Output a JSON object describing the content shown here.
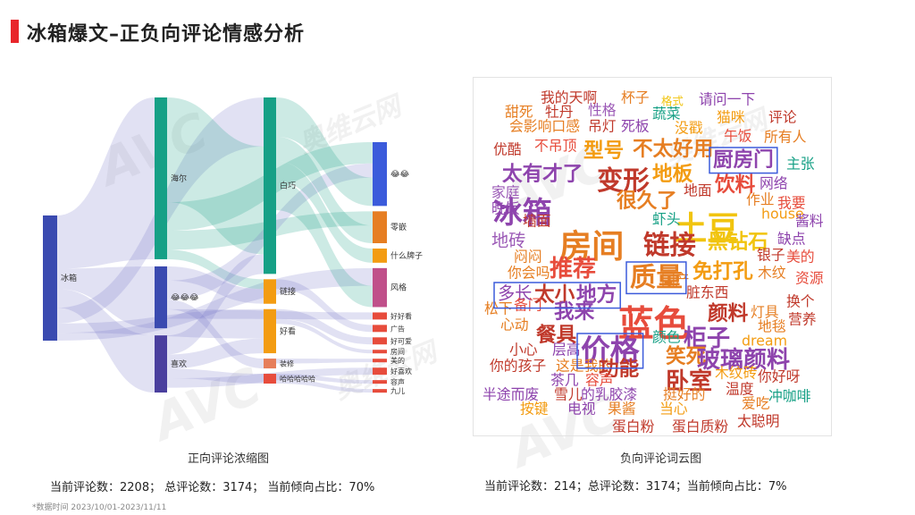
{
  "header": {
    "title": "冰箱爆文–正负向评论情感分析"
  },
  "watermark": {
    "brand": "AVC",
    "name": "奥维云网",
    "en": "ALL VIEW CLOUD"
  },
  "left_panel": {
    "caption": "正向评论浓缩图",
    "stats": "当前评论数：2208； 总评论数：3174； 当前倾向占比：70%"
  },
  "right_panel": {
    "caption": "负向评论词云图",
    "stats": "当前评论数：214；总评论数：3174；当前倾向占比：7%"
  },
  "footnote": "*数据时间 2023/10/01-2023/11/11",
  "chart_data": [
    {
      "type": "sankey",
      "title": "正向评论浓缩图",
      "nodes": [
        {
          "id": "冰箱",
          "level": 0,
          "color": "#3a4ab0"
        },
        {
          "id": "海尔",
          "level": 1,
          "color": "#16a086"
        },
        {
          "id": "😂😂😂",
          "level": 1,
          "color": "#3a4ab0"
        },
        {
          "id": "喜欢",
          "level": 1,
          "color": "#4a3f9e"
        },
        {
          "id": "白巧",
          "level": 2,
          "color": "#16a086"
        },
        {
          "id": "链接",
          "level": 2,
          "color": "#f39c12"
        },
        {
          "id": "好看",
          "level": 2,
          "color": "#f39c12"
        },
        {
          "id": "装修",
          "level": 2,
          "color": "#e67e5a"
        },
        {
          "id": "哈哈哈哈哈",
          "level": 2,
          "color": "#e74c3c"
        },
        {
          "id": "😂😂",
          "level": 3,
          "color": "#3b5bdb"
        },
        {
          "id": "零嵌",
          "level": 3,
          "color": "#e67e22"
        },
        {
          "id": "什么牌子",
          "level": 3,
          "color": "#f39c12"
        },
        {
          "id": "风格",
          "level": 3,
          "color": "#c0508a"
        },
        {
          "id": "好好看",
          "level": 3,
          "color": "#e74c3c"
        },
        {
          "id": "广告",
          "level": 3,
          "color": "#e74c3c"
        },
        {
          "id": "好可爱",
          "level": 3,
          "color": "#e74c3c"
        },
        {
          "id": "房间",
          "level": 3,
          "color": "#e74c3c"
        },
        {
          "id": "美的",
          "level": 3,
          "color": "#e74c3c"
        },
        {
          "id": "好喜欢",
          "level": 3,
          "color": "#e74c3c"
        },
        {
          "id": "容声",
          "level": 3,
          "color": "#e74c3c"
        },
        {
          "id": "九儿",
          "level": 3,
          "color": "#e74c3c"
        }
      ],
      "links": [
        {
          "source": "冰箱",
          "target": "海尔",
          "value": 34
        },
        {
          "source": "冰箱",
          "target": "😂😂😂",
          "value": 13
        },
        {
          "source": "冰箱",
          "target": "喜欢",
          "value": 12
        },
        {
          "source": "冰箱",
          "target": "白巧",
          "value": 10
        },
        {
          "source": "冰箱",
          "target": "好看",
          "value": 6
        },
        {
          "source": "冰箱",
          "target": "风格",
          "value": 5
        },
        {
          "source": "海尔",
          "target": "白巧",
          "value": 22
        },
        {
          "source": "海尔",
          "target": "😂😂",
          "value": 6
        },
        {
          "source": "海尔",
          "target": "零嵌",
          "value": 4
        },
        {
          "source": "海尔",
          "target": "链接",
          "value": 2
        },
        {
          "source": "😂😂😂",
          "target": "链接",
          "value": 3
        },
        {
          "source": "😂😂😂",
          "target": "😂😂",
          "value": 4
        },
        {
          "source": "😂😂😂",
          "target": "装修",
          "value": 2
        },
        {
          "source": "😂😂😂",
          "target": "好好看",
          "value": 2
        },
        {
          "source": "喜欢",
          "target": "白巧",
          "value": 4
        },
        {
          "source": "喜欢",
          "target": "好看",
          "value": 3
        },
        {
          "source": "喜欢",
          "target": "哈哈哈哈哈",
          "value": 2
        },
        {
          "source": "喜欢",
          "target": "好喜欢",
          "value": 2
        },
        {
          "source": "白巧",
          "target": "😂😂",
          "value": 8
        },
        {
          "source": "白巧",
          "target": "零嵌",
          "value": 5
        },
        {
          "source": "白巧",
          "target": "什么牌子",
          "value": 4
        },
        {
          "source": "白巧",
          "target": "风格",
          "value": 6
        },
        {
          "source": "链接",
          "target": "广告",
          "value": 2
        },
        {
          "source": "好看",
          "target": "好可爱",
          "value": 2
        },
        {
          "source": "好看",
          "target": "房间",
          "value": 1
        },
        {
          "source": "装修",
          "target": "美的",
          "value": 1
        },
        {
          "source": "哈哈哈哈哈",
          "target": "容声",
          "value": 1
        },
        {
          "source": "哈哈哈哈哈",
          "target": "九儿",
          "value": 1
        }
      ]
    },
    {
      "type": "wordcloud",
      "title": "负向评论词云图",
      "highlighted": [
        "厨房门",
        "质量",
        "多长 太小 地方",
        "价格"
      ],
      "words": [
        {
          "text": "我的天啊",
          "weight": 2,
          "color": "#c0392b"
        },
        {
          "text": "杯子",
          "weight": 2,
          "color": "#e67e22"
        },
        {
          "text": "格式",
          "weight": 1,
          "color": "#f1c40f"
        },
        {
          "text": "请问一下",
          "weight": 2,
          "color": "#8e44ad"
        },
        {
          "text": "甜死",
          "weight": 2,
          "color": "#e67e22"
        },
        {
          "text": "牡丹",
          "weight": 2,
          "color": "#c0392b"
        },
        {
          "text": "性格",
          "weight": 2,
          "color": "#9b59b6"
        },
        {
          "text": "蔬菜",
          "weight": 2,
          "color": "#16a085"
        },
        {
          "text": "猫咪",
          "weight": 2,
          "color": "#f39c12"
        },
        {
          "text": "评论",
          "weight": 2,
          "color": "#c0392b"
        },
        {
          "text": "会影响口感",
          "weight": 2,
          "color": "#e67e22"
        },
        {
          "text": "吊灯",
          "weight": 2,
          "color": "#c0392b"
        },
        {
          "text": "死板",
          "weight": 2,
          "color": "#8e44ad"
        },
        {
          "text": "没戳",
          "weight": 2,
          "color": "#f39c12"
        },
        {
          "text": "午饭",
          "weight": 2,
          "color": "#e74c3c"
        },
        {
          "text": "所有人",
          "weight": 2,
          "color": "#e67e22"
        },
        {
          "text": "优酷",
          "weight": 2,
          "color": "#c0392b"
        },
        {
          "text": "不吊顶",
          "weight": 2,
          "color": "#e74c3c"
        },
        {
          "text": "型号",
          "weight": 4,
          "color": "#f39c12"
        },
        {
          "text": "不太好用",
          "weight": 4,
          "color": "#e67e22"
        },
        {
          "text": "厨房门",
          "weight": 4,
          "color": "#8e44ad"
        },
        {
          "text": "主张",
          "weight": 2,
          "color": "#16a085"
        },
        {
          "text": "太有才了",
          "weight": 4,
          "color": "#8e44ad"
        },
        {
          "text": "变形",
          "weight": 6,
          "color": "#c0392b"
        },
        {
          "text": "地板",
          "weight": 4,
          "color": "#f39c12"
        },
        {
          "text": "饮料",
          "weight": 4,
          "color": "#e74c3c"
        },
        {
          "text": "网络",
          "weight": 2,
          "color": "#8e44ad"
        },
        {
          "text": "家庭",
          "weight": 2,
          "color": "#9b59b6"
        },
        {
          "text": "冰箱",
          "weight": 7,
          "color": "#8e44ad"
        },
        {
          "text": "很久了",
          "weight": 4,
          "color": "#e67e22"
        },
        {
          "text": "地面",
          "weight": 2,
          "color": "#c0392b"
        },
        {
          "text": "土豆",
          "weight": 8,
          "color": "#f1c40f"
        },
        {
          "text": "作业",
          "weight": 2,
          "color": "#e67e22"
        },
        {
          "text": "晚饭",
          "weight": 2,
          "color": "#8e44ad"
        },
        {
          "text": "house",
          "weight": 2,
          "color": "#f39c12"
        },
        {
          "text": "我要",
          "weight": 2,
          "color": "#e74c3c"
        },
        {
          "text": "墙面",
          "weight": 2,
          "color": "#c0392b"
        },
        {
          "text": "房间",
          "weight": 8,
          "color": "#e67e22"
        },
        {
          "text": "虾头",
          "weight": 2,
          "color": "#16a085"
        },
        {
          "text": "酱料",
          "weight": 2,
          "color": "#8e44ad"
        },
        {
          "text": "地砖",
          "weight": 3,
          "color": "#9b59b6"
        },
        {
          "text": "链接",
          "weight": 6,
          "color": "#c0392b"
        },
        {
          "text": "黑钻石",
          "weight": 4,
          "color": "#f1c40f"
        },
        {
          "text": "缺点",
          "weight": 2,
          "color": "#8e44ad"
        },
        {
          "text": "闷闷",
          "weight": 2,
          "color": "#e67e22"
        },
        {
          "text": "推荐",
          "weight": 5,
          "color": "#e74c3c"
        },
        {
          "text": "银子",
          "weight": 2,
          "color": "#c0392b"
        },
        {
          "text": "美的",
          "weight": 2,
          "color": "#e74c3c"
        },
        {
          "text": "你会吗",
          "weight": 2,
          "color": "#e67e22"
        },
        {
          "text": "质量",
          "weight": 6,
          "color": "#e67e22"
        },
        {
          "text": "免打孔",
          "weight": 4,
          "color": "#f39c12"
        },
        {
          "text": "木纹",
          "weight": 2,
          "color": "#e67e22"
        },
        {
          "text": "资源",
          "weight": 2,
          "color": "#e74c3c"
        },
        {
          "text": "多长",
          "weight": 3,
          "color": "#8e44ad"
        },
        {
          "text": "太小",
          "weight": 4,
          "color": "#c0392b"
        },
        {
          "text": "地方",
          "weight": 4,
          "color": "#8e44ad"
        },
        {
          "text": "国产",
          "weight": 2,
          "color": "#e67e22"
        },
        {
          "text": "蓝色",
          "weight": 9,
          "color": "#e74c3c"
        },
        {
          "text": "脏东西",
          "weight": 2,
          "color": "#c0392b"
        },
        {
          "text": "换个",
          "weight": 2,
          "color": "#c0392b"
        },
        {
          "text": "松下",
          "weight": 2,
          "color": "#e67e22"
        },
        {
          "text": "备门",
          "weight": 2,
          "color": "#e74c3c"
        },
        {
          "text": "我来",
          "weight": 4,
          "color": "#8e44ad"
        },
        {
          "text": "颜料",
          "weight": 4,
          "color": "#c0392b"
        },
        {
          "text": "灯具",
          "weight": 2,
          "color": "#e67e22"
        },
        {
          "text": "营养",
          "weight": 2,
          "color": "#c0392b"
        },
        {
          "text": "心动",
          "weight": 2,
          "color": "#e67e22"
        },
        {
          "text": "餐具",
          "weight": 4,
          "color": "#c0392b"
        },
        {
          "text": "柜子",
          "weight": 5,
          "color": "#8e44ad"
        },
        {
          "text": "地毯",
          "weight": 2,
          "color": "#e67e22"
        },
        {
          "text": "价格",
          "weight": 7,
          "color": "#8e44ad"
        },
        {
          "text": "颜色",
          "weight": 2,
          "color": "#16a085"
        },
        {
          "text": "dream",
          "weight": 2,
          "color": "#f39c12"
        },
        {
          "text": "小心",
          "weight": 2,
          "color": "#c0392b"
        },
        {
          "text": "层高",
          "weight": 2,
          "color": "#8e44ad"
        },
        {
          "text": "笑死",
          "weight": 4,
          "color": "#e67e22"
        },
        {
          "text": "玻璃颜料",
          "weight": 5,
          "color": "#8e44ad"
        },
        {
          "text": "你的孩子",
          "weight": 2,
          "color": "#c0392b"
        },
        {
          "text": "这是我的",
          "weight": 2,
          "color": "#e67e22"
        },
        {
          "text": "功能",
          "weight": 4,
          "color": "#c0392b"
        },
        {
          "text": "卧室",
          "weight": 5,
          "color": "#c0392b"
        },
        {
          "text": "木纹砖",
          "weight": 2,
          "color": "#f39c12"
        },
        {
          "text": "茶几",
          "weight": 2,
          "color": "#8e44ad"
        },
        {
          "text": "容声",
          "weight": 2,
          "color": "#e74c3c"
        },
        {
          "text": "你好呀",
          "weight": 2,
          "color": "#c0392b"
        },
        {
          "text": "半途而废",
          "weight": 2,
          "color": "#8e44ad"
        },
        {
          "text": "雪儿",
          "weight": 2,
          "color": "#c0392b"
        },
        {
          "text": "的乳胶漆",
          "weight": 2,
          "color": "#8e44ad"
        },
        {
          "text": "挺好的",
          "weight": 2,
          "color": "#e67e22"
        },
        {
          "text": "温度",
          "weight": 2,
          "color": "#c0392b"
        },
        {
          "text": "冲咖啡",
          "weight": 2,
          "color": "#16a085"
        },
        {
          "text": "按键",
          "weight": 2,
          "color": "#f39c12"
        },
        {
          "text": "电视",
          "weight": 2,
          "color": "#8e44ad"
        },
        {
          "text": "果酱",
          "weight": 2,
          "color": "#e67e22"
        },
        {
          "text": "当心",
          "weight": 2,
          "color": "#f39c12"
        },
        {
          "text": "爱吃",
          "weight": 2,
          "color": "#e67e22"
        },
        {
          "text": "蛋白粉",
          "weight": 2,
          "color": "#c0392b"
        },
        {
          "text": "蛋白质粉",
          "weight": 2,
          "color": "#c0392b"
        },
        {
          "text": "太聪明",
          "weight": 2,
          "color": "#c0392b"
        }
      ]
    }
  ]
}
